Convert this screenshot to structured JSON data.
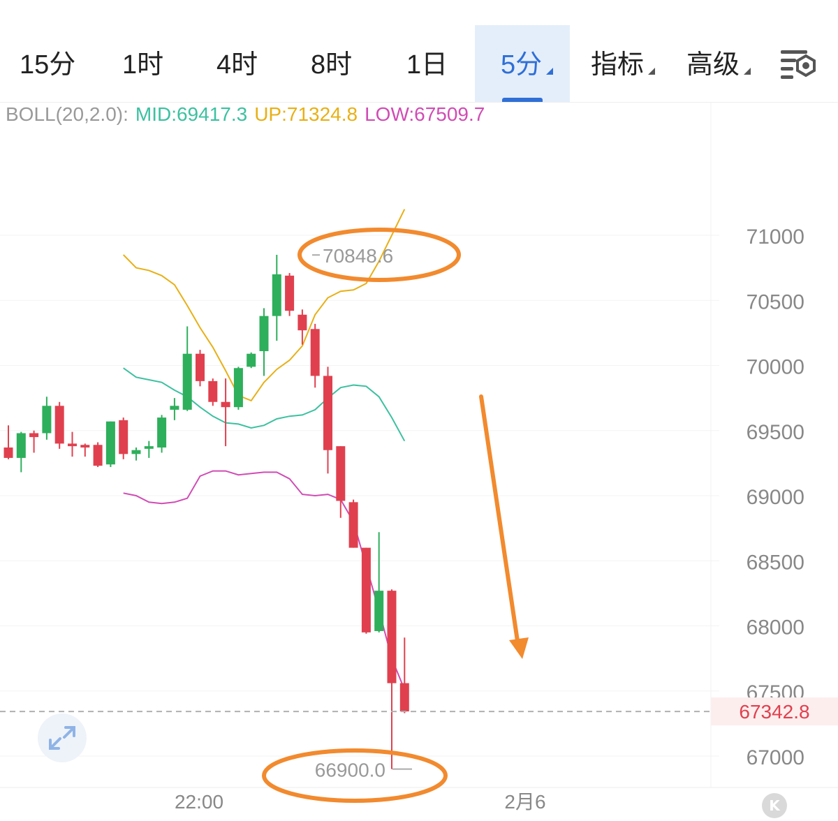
{
  "tabs": [
    {
      "label": "15分",
      "active": false,
      "dropdown": false
    },
    {
      "label": "1时",
      "active": false,
      "dropdown": false
    },
    {
      "label": "4时",
      "active": false,
      "dropdown": false
    },
    {
      "label": "8时",
      "active": false,
      "dropdown": false
    },
    {
      "label": "1日",
      "active": false,
      "dropdown": false
    },
    {
      "label": "5分",
      "active": true,
      "dropdown": true
    },
    {
      "label": "指标",
      "active": false,
      "dropdown": true
    },
    {
      "label": "高级",
      "active": false,
      "dropdown": true
    }
  ],
  "settings_icon": "chart-settings-icon",
  "indicator": {
    "name": "BOLL(20,2.0):",
    "mid_label": "MID:69417.3",
    "up_label": "UP:71324.8",
    "low_label": "LOW:67509.7"
  },
  "colors": {
    "accent": "#2f6fd6",
    "up_candle": "#2eaf5b",
    "down_candle": "#e0404e",
    "boll_mid": "#3cc1a0",
    "boll_up": "#e8b016",
    "boll_low": "#d04cb4",
    "annotation": "#f28a2e",
    "last_price": "#e0404e"
  },
  "chart_data": {
    "type": "candlestick",
    "interval": "5分",
    "y_axis": {
      "ticks": [
        "71000",
        "70500",
        "70000",
        "69500",
        "69000",
        "68500",
        "68000",
        "67500",
        "67000"
      ],
      "ylim": [
        66750,
        71600
      ]
    },
    "x_axis": {
      "ticks": [
        "22:00",
        "2月6"
      ]
    },
    "last_price": "67342.8",
    "high_label": "70848.6",
    "low_label": "66900.0",
    "candles": [
      {
        "o": 69370,
        "h": 69540,
        "l": 69280,
        "c": 69290
      },
      {
        "o": 69290,
        "h": 69490,
        "l": 69180,
        "c": 69480
      },
      {
        "o": 69480,
        "h": 69500,
        "l": 69330,
        "c": 69450
      },
      {
        "o": 69480,
        "h": 69760,
        "l": 69430,
        "c": 69690
      },
      {
        "o": 69690,
        "h": 69720,
        "l": 69360,
        "c": 69400
      },
      {
        "o": 69400,
        "h": 69490,
        "l": 69300,
        "c": 69380
      },
      {
        "o": 69390,
        "h": 69400,
        "l": 69300,
        "c": 69370
      },
      {
        "o": 69390,
        "h": 69410,
        "l": 69220,
        "c": 69230
      },
      {
        "o": 69240,
        "h": 69570,
        "l": 69220,
        "c": 69570
      },
      {
        "o": 69580,
        "h": 69600,
        "l": 69280,
        "c": 69320
      },
      {
        "o": 69320,
        "h": 69370,
        "l": 69270,
        "c": 69350
      },
      {
        "o": 69360,
        "h": 69420,
        "l": 69290,
        "c": 69380
      },
      {
        "o": 69370,
        "h": 69620,
        "l": 69330,
        "c": 69600
      },
      {
        "o": 69660,
        "h": 69750,
        "l": 69580,
        "c": 69690
      },
      {
        "o": 69660,
        "h": 70300,
        "l": 69650,
        "c": 70090
      },
      {
        "o": 70090,
        "h": 70120,
        "l": 69840,
        "c": 69880
      },
      {
        "o": 69880,
        "h": 69900,
        "l": 69690,
        "c": 69720
      },
      {
        "o": 69720,
        "h": 69900,
        "l": 69380,
        "c": 69680
      },
      {
        "o": 69680,
        "h": 69990,
        "l": 69660,
        "c": 69980
      },
      {
        "o": 69990,
        "h": 70100,
        "l": 69980,
        "c": 70090
      },
      {
        "o": 70110,
        "h": 70440,
        "l": 69920,
        "c": 70380
      },
      {
        "o": 70380,
        "h": 70850,
        "l": 70190,
        "c": 70700
      },
      {
        "o": 70690,
        "h": 70710,
        "l": 70380,
        "c": 70420
      },
      {
        "o": 70390,
        "h": 70430,
        "l": 70160,
        "c": 70270
      },
      {
        "o": 70280,
        "h": 70320,
        "l": 69830,
        "c": 69920
      },
      {
        "o": 69920,
        "h": 69990,
        "l": 69170,
        "c": 69350
      },
      {
        "o": 69380,
        "h": 69380,
        "l": 68830,
        "c": 68960
      },
      {
        "o": 68950,
        "h": 68970,
        "l": 68600,
        "c": 68600
      },
      {
        "o": 68600,
        "h": 68600,
        "l": 67940,
        "c": 67950
      },
      {
        "o": 67960,
        "h": 68720,
        "l": 67950,
        "c": 68270
      },
      {
        "o": 68270,
        "h": 68280,
        "l": 66900,
        "c": 67560
      },
      {
        "o": 67560,
        "h": 67910,
        "l": 67330,
        "c": 67343
      }
    ],
    "boll_up": [
      70850,
      70750,
      70730,
      70690,
      70620,
      70460,
      70290,
      70140,
      69960,
      69770,
      69730,
      69870,
      69970,
      70040,
      70150,
      70390,
      70520,
      70570,
      70580,
      70630,
      70800,
      71000,
      71200
    ],
    "boll_mid": [
      69980,
      69910,
      69890,
      69870,
      69810,
      69760,
      69680,
      69610,
      69560,
      69550,
      69520,
      69540,
      69590,
      69610,
      69620,
      69660,
      69750,
      69830,
      69850,
      69840,
      69760,
      69600,
      69420
    ],
    "boll_low": [
      69020,
      69000,
      68950,
      68940,
      68950,
      68980,
      69150,
      69190,
      69190,
      69160,
      69170,
      69180,
      69180,
      69130,
      69010,
      69000,
      69010,
      68970,
      68800,
      68460,
      68120,
      67750,
      67510
    ]
  }
}
